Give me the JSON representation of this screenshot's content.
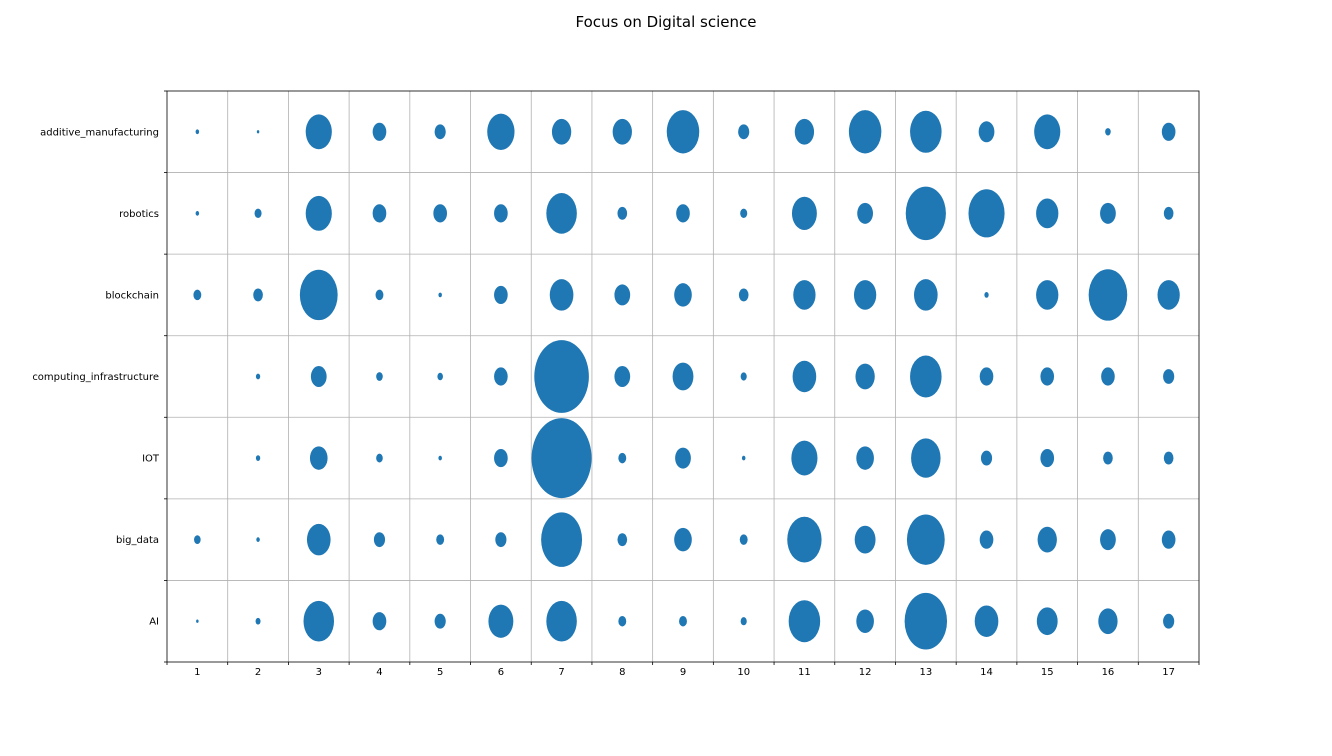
{
  "chart_data": {
    "type": "scatter",
    "title": "Focus on Digital science",
    "xlabel": "",
    "ylabel": "",
    "x": [
      "1",
      "2",
      "3",
      "4",
      "5",
      "6",
      "7",
      "8",
      "9",
      "10",
      "11",
      "12",
      "13",
      "14",
      "15",
      "16",
      "17"
    ],
    "categories": [
      "AI",
      "big_data",
      "IOT",
      "computing_infrastructure",
      "blockchain",
      "robotics",
      "additive_manufacturing"
    ],
    "grid": true,
    "color": "#1f77b4",
    "size_matrix": {
      "additive_manufacturing": [
        0.2,
        0.1,
        11,
        3,
        2,
        12,
        6,
        6,
        17,
        2,
        6,
        17,
        16,
        4,
        11,
        0.5,
        3
      ],
      "robotics": [
        0.2,
        0.8,
        11,
        3,
        3,
        3,
        15,
        1.5,
        3,
        0.8,
        10,
        4,
        26,
        21,
        8,
        4,
        1.5
      ],
      "blockchain": [
        1,
        1.5,
        23,
        1,
        0.2,
        3,
        9,
        4,
        5,
        1.5,
        8,
        8,
        9,
        0.3,
        8,
        24,
        8
      ],
      "computing_infrastructure": [
        0,
        0.3,
        4,
        0.7,
        0.5,
        3,
        48,
        4,
        7,
        0.6,
        9,
        6,
        16,
        3,
        3,
        3,
        2
      ],
      "IOT": [
        0,
        0.3,
        5,
        0.7,
        0.2,
        3,
        58,
        1,
        4,
        0.2,
        11,
        5,
        14,
        2,
        3,
        1.5,
        1.5
      ],
      "big_data": [
        0.7,
        0.2,
        9,
        2,
        1,
        2,
        27,
        1.5,
        5,
        1,
        19,
        7,
        23,
        3,
        6,
        4,
        3
      ],
      "AI": [
        0.1,
        0.4,
        15,
        3,
        2,
        10,
        15,
        1,
        1,
        0.6,
        16,
        5,
        29,
        9,
        7,
        6,
        2
      ]
    }
  }
}
